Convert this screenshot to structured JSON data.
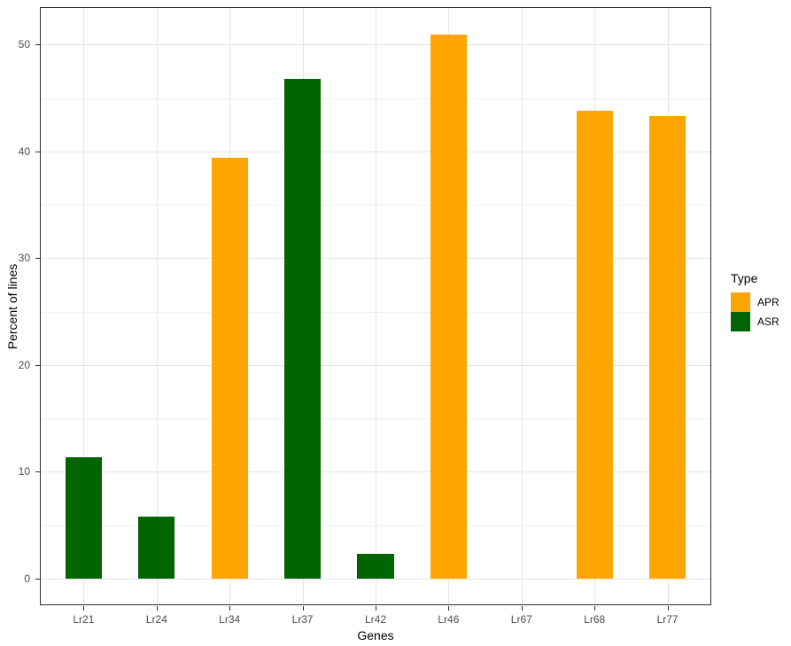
{
  "chart_data": {
    "type": "bar",
    "title": "",
    "xlabel": "Genes",
    "ylabel": "Percent of lines",
    "categories": [
      "Lr21",
      "Lr24",
      "Lr34",
      "Lr37",
      "Lr42",
      "Lr46",
      "Lr67",
      "Lr68",
      "Lr77"
    ],
    "values": [
      11.4,
      5.8,
      39.4,
      46.8,
      2.3,
      50.9,
      0,
      43.8,
      43.3
    ],
    "types": [
      "ASR",
      "ASR",
      "APR",
      "ASR",
      "ASR",
      "APR",
      null,
      "APR",
      "APR"
    ],
    "type_colors": {
      "APR": "#FFA500",
      "ASR": "#006400"
    },
    "y_axis": {
      "ticks": [
        0,
        10,
        20,
        30,
        40,
        50
      ],
      "minor_ticks": [
        5,
        15,
        25,
        35,
        45
      ],
      "range": [
        -2.5,
        53.5
      ],
      "grid": true
    },
    "x_axis": {
      "expand": 0.6,
      "bar_width_fraction": 0.5,
      "grid": true
    },
    "legend": {
      "title": "Type",
      "position": "right",
      "entries": [
        {
          "label": "APR",
          "color": "#FFA500"
        },
        {
          "label": "ASR",
          "color": "#006400"
        }
      ]
    },
    "style": {
      "panel_border_color": "#2e2e2e",
      "grid_major_color": "#e3e3e3",
      "grid_minor_color": "#f0f0f0",
      "tick_label_color": "#4d4d4d",
      "title_color": "#000000",
      "background": "#ffffff"
    }
  }
}
